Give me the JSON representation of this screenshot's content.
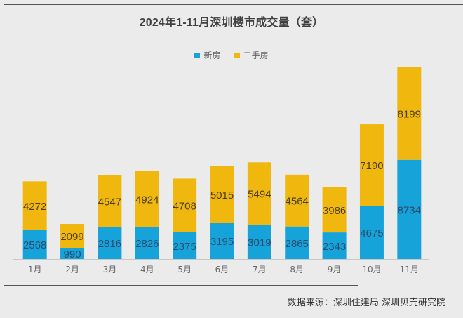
{
  "chart_data": {
    "type": "bar",
    "stacked": true,
    "title": "2024年1-11月深圳楼市成交量（套）",
    "xlabel": "",
    "ylabel": "",
    "categories": [
      "1月",
      "2月",
      "3月",
      "4月",
      "5月",
      "6月",
      "7月",
      "8月",
      "9月",
      "10月",
      "11月"
    ],
    "series": [
      {
        "name": "新房",
        "color": "#16a3da",
        "label_color": "#2a4a6e",
        "values": [
          2568,
          990,
          2816,
          2826,
          2375,
          3195,
          3019,
          2865,
          2343,
          4675,
          8734
        ]
      },
      {
        "name": "二手房",
        "color": "#f0b70f",
        "label_color": "#4a3f1c",
        "values": [
          4272,
          2099,
          4547,
          4924,
          4708,
          5015,
          5494,
          4564,
          3986,
          7190,
          8199
        ]
      }
    ],
    "ylim": [
      0,
      17000
    ],
    "grid": false,
    "legend_position": "top-center",
    "data_labels": true
  },
  "source": "数据来源：深圳住建局    深圳贝壳研究院"
}
